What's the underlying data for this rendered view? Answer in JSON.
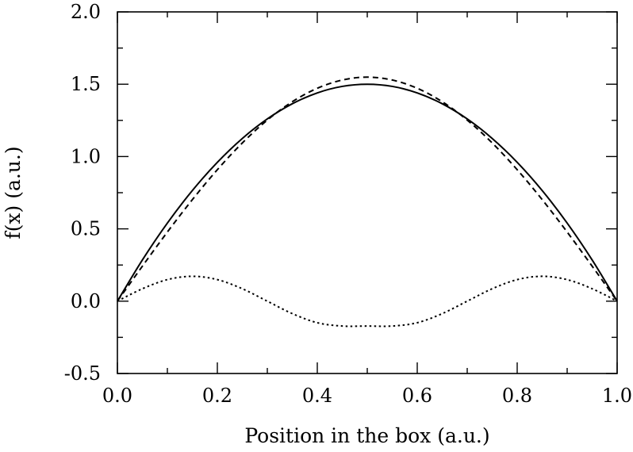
{
  "chart_data": {
    "type": "line",
    "title": "",
    "xlabel": "Position in the box (a.u.)",
    "ylabel": "f(x) (a.u.)",
    "xlim": [
      0,
      1
    ],
    "ylim": [
      -0.5,
      2.0
    ],
    "x_ticks": [
      "0.0",
      "0.2",
      "0.4",
      "0.6",
      "0.8",
      "1.0"
    ],
    "y_ticks": [
      "-0.5",
      "0.0",
      "0.5",
      "1.0",
      "1.5",
      "2.0"
    ],
    "grid": false,
    "legend": "none",
    "line_color": "#000000",
    "series": [
      {
        "style": "solid",
        "x": [
          0.0,
          0.05,
          0.1,
          0.15,
          0.2,
          0.25,
          0.3,
          0.35,
          0.4,
          0.45,
          0.5,
          0.55,
          0.6,
          0.65,
          0.7,
          0.75,
          0.8,
          0.85,
          0.9,
          0.95,
          1.0
        ],
        "y": [
          0.0,
          0.285,
          0.54,
          0.765,
          0.96,
          1.125,
          1.26,
          1.365,
          1.44,
          1.485,
          1.5,
          1.485,
          1.44,
          1.365,
          1.26,
          1.125,
          0.96,
          0.765,
          0.54,
          0.285,
          0.0
        ]
      },
      {
        "style": "dashed",
        "x": [
          0.0,
          0.05,
          0.1,
          0.15,
          0.2,
          0.25,
          0.3,
          0.35,
          0.4,
          0.45,
          0.5,
          0.55,
          0.6,
          0.65,
          0.7,
          0.75,
          0.8,
          0.85,
          0.9,
          0.95,
          1.0
        ],
        "y": [
          0.0,
          0.242,
          0.478,
          0.702,
          0.909,
          1.094,
          1.252,
          1.379,
          1.472,
          1.529,
          1.549,
          1.529,
          1.472,
          1.379,
          1.252,
          1.094,
          0.909,
          0.702,
          0.478,
          0.242,
          0.0
        ]
      },
      {
        "style": "dotted",
        "x": [
          0.0,
          0.05,
          0.1,
          0.15,
          0.2,
          0.25,
          0.3,
          0.35,
          0.4,
          0.45,
          0.5,
          0.55,
          0.6,
          0.65,
          0.7,
          0.75,
          0.8,
          0.85,
          0.9,
          0.95,
          1.0
        ],
        "y": [
          0.0,
          0.086,
          0.149,
          0.172,
          0.149,
          0.086,
          0.0,
          -0.086,
          -0.149,
          -0.172,
          -0.172,
          -0.172,
          -0.149,
          -0.086,
          0.0,
          0.086,
          0.149,
          0.172,
          0.149,
          0.086,
          0.0
        ]
      }
    ]
  }
}
